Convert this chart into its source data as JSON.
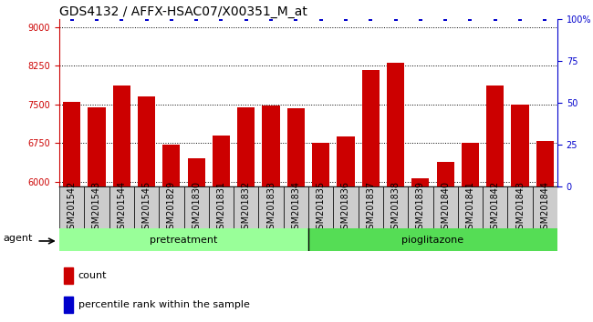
{
  "title": "GDS4132 / AFFX-HSAC07/X00351_M_at",
  "samples": [
    "GSM201542",
    "GSM201543",
    "GSM201544",
    "GSM201545",
    "GSM201829",
    "GSM201830",
    "GSM201831",
    "GSM201832",
    "GSM201833",
    "GSM201834",
    "GSM201835",
    "GSM201836",
    "GSM201837",
    "GSM201838",
    "GSM201839",
    "GSM201840",
    "GSM201841",
    "GSM201842",
    "GSM201843",
    "GSM201844"
  ],
  "counts": [
    7540,
    7440,
    7870,
    7650,
    6710,
    6460,
    6890,
    7450,
    7470,
    7430,
    6760,
    6870,
    8160,
    8310,
    6060,
    6390,
    6760,
    7870,
    7490,
    6790
  ],
  "percentile_ranks": [
    100,
    100,
    100,
    100,
    100,
    100,
    100,
    100,
    100,
    100,
    100,
    100,
    100,
    100,
    100,
    100,
    100,
    100,
    100,
    100
  ],
  "pretreatment_count": 10,
  "pioglitazone_count": 10,
  "ylim_left": [
    5900,
    9150
  ],
  "ylim_right": [
    0,
    100
  ],
  "yticks_left": [
    6000,
    6750,
    7500,
    8250,
    9000
  ],
  "yticks_right": [
    0,
    25,
    50,
    75,
    100
  ],
  "bar_color": "#cc0000",
  "dot_color": "#0000cc",
  "pretreatment_color": "#99ff99",
  "pioglitazone_color": "#55dd55",
  "plot_bg_color": "#ffffff",
  "label_box_color": "#cccccc",
  "title_fontsize": 10,
  "tick_fontsize": 7,
  "label_fontsize": 8,
  "agent_fontsize": 8
}
